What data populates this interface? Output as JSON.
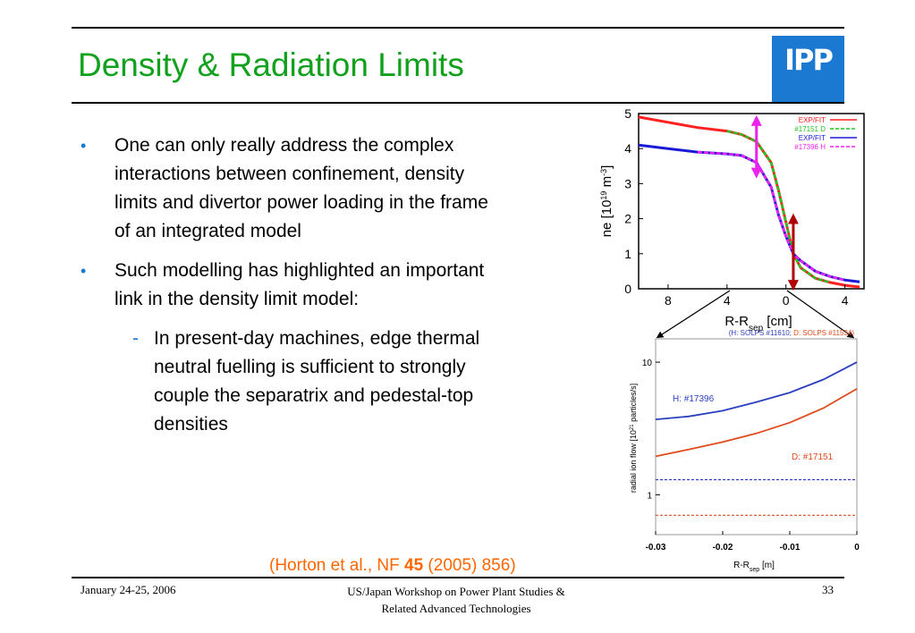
{
  "slide": {
    "title": "Density & Radiation Limits",
    "logo_text": "IPP",
    "bullets": [
      "One can only really address the complex interactions between confinement, density limits and divertor power loading in the frame of an integrated model",
      "Such modelling has highlighted an important link in the density limit model:"
    ],
    "sub_bullet": "In present-day machines, edge thermal neutral fuelling is sufficient to strongly couple the separatrix and pedestal-top densities",
    "bullet_marker": "•",
    "sub_marker": "-",
    "citation": {
      "pre": "(Horton et al., NF ",
      "bold": "45",
      "post": " (2005) 856)"
    }
  },
  "footer": {
    "date": "January 24-25, 2006",
    "workshop_line1": "US/Japan Workshop on Power Plant Studies &",
    "workshop_line2": "Related Advanced Technologies",
    "page": "33"
  },
  "colors": {
    "title": "#11a11d",
    "accent_blue": "#1b79d1",
    "citation": "#ff6600",
    "series_red": "#ff2020",
    "series_green": "#22c422",
    "series_blue": "#1a1ad6",
    "series_magenta": "#ee22ee",
    "arrow_dark_red": "#b00000",
    "flow_blue": "#2a3fbf",
    "flow_red": "#e04a1c"
  },
  "chart_data": [
    {
      "type": "line",
      "ylabel_parts": [
        "ne [10",
        "19",
        " m",
        "-3",
        "]"
      ],
      "xlabel_parts": [
        "R-R",
        "sep",
        " [cm]"
      ],
      "x_ticks": [
        "8",
        "4",
        "0",
        "4"
      ],
      "y_ticks": [
        "0",
        "1",
        "2",
        "3",
        "4",
        "5"
      ],
      "ylim": [
        0,
        5
      ],
      "legend": [
        "EXP/FIT",
        "#17151 D",
        "EXP/FIT",
        "#17396 H"
      ],
      "legend_position": "top-right",
      "series": [
        {
          "name": "EXP/FIT",
          "x": [
            -10,
            -8,
            -6,
            -4,
            -3,
            -2,
            -1,
            -0.5,
            0,
            0.5,
            1,
            2,
            3,
            4,
            5
          ],
          "values": [
            4.9,
            4.75,
            4.6,
            4.5,
            4.4,
            4.2,
            3.6,
            2.8,
            1.9,
            1.0,
            0.6,
            0.3,
            0.18,
            0.1,
            0.05
          ]
        },
        {
          "name": "#17151 D",
          "x": [
            -4,
            -3,
            -2,
            -1,
            -0.5,
            0,
            0.5,
            1,
            2,
            3
          ],
          "values": [
            4.5,
            4.4,
            4.2,
            3.6,
            2.8,
            1.9,
            1.0,
            0.6,
            0.3,
            0.18
          ]
        },
        {
          "name": "EXP/FIT",
          "x": [
            -10,
            -8,
            -6,
            -4,
            -3,
            -2,
            -1,
            -0.5,
            0,
            0.5,
            1,
            2,
            3,
            4,
            5
          ],
          "values": [
            4.1,
            4.0,
            3.9,
            3.85,
            3.8,
            3.6,
            2.9,
            2.1,
            1.5,
            1.0,
            0.8,
            0.5,
            0.35,
            0.25,
            0.2
          ]
        },
        {
          "name": "#17396 H",
          "x": [
            -6,
            -4,
            -3,
            -2,
            -1,
            -0.5,
            0,
            0.5,
            1,
            2,
            3,
            4
          ],
          "values": [
            3.9,
            3.85,
            3.8,
            3.6,
            2.9,
            2.1,
            1.5,
            1.0,
            0.8,
            0.5,
            0.35,
            0.25
          ]
        }
      ],
      "annotations": [
        {
          "x": -2,
          "y_from": 3.3,
          "y_to": 4.8,
          "color": "magenta"
        },
        {
          "x": 0.5,
          "y_from": 0.1,
          "y_to": 2.0,
          "color": "dark-red"
        }
      ]
    },
    {
      "type": "line",
      "title_parts": [
        "(H: SOLPS #11610; ",
        "D: SOLPS #11534)"
      ],
      "ylabel_parts": [
        "radial ion flow [10",
        "21",
        " particles/s]"
      ],
      "xlabel_parts": [
        "R-R",
        "sep",
        " [m]"
      ],
      "x_ticks": [
        "-0.03",
        "-0.02",
        "-0.01",
        "0"
      ],
      "y_ticks": [
        "1",
        "10"
      ],
      "xlim": [
        -0.03,
        0
      ],
      "ylim": [
        0.5,
        15
      ],
      "yscale": "log",
      "series": [
        {
          "name": "H: #17396",
          "x": [
            -0.03,
            -0.025,
            -0.02,
            -0.015,
            -0.01,
            -0.005,
            0
          ],
          "values": [
            3.7,
            3.9,
            4.3,
            5.0,
            5.9,
            7.4,
            10.0
          ]
        },
        {
          "name": "D: #17151",
          "x": [
            -0.03,
            -0.025,
            -0.02,
            -0.015,
            -0.01,
            -0.005,
            0
          ],
          "values": [
            1.95,
            2.2,
            2.5,
            2.9,
            3.5,
            4.5,
            6.3
          ]
        }
      ],
      "reference_lines": [
        {
          "series": "H",
          "value": 1.3,
          "style": "dashed"
        },
        {
          "series": "D",
          "value": 0.7,
          "style": "dashed"
        }
      ],
      "series_labels": [
        "H: #17396",
        "D: #17151"
      ]
    }
  ]
}
